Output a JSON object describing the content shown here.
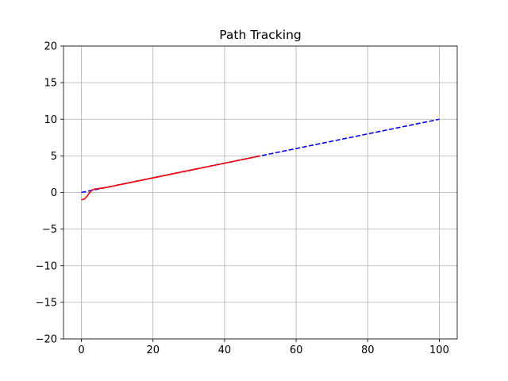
{
  "chart_data": {
    "type": "line",
    "title": "Path Tracking",
    "xlabel": "",
    "ylabel": "",
    "xlim": [
      -5,
      105
    ],
    "ylim": [
      -20,
      20
    ],
    "x_ticks": [
      0,
      20,
      40,
      60,
      80,
      100
    ],
    "y_ticks": [
      -20,
      -15,
      -10,
      -5,
      0,
      5,
      10,
      15,
      20
    ],
    "x_tick_labels": [
      "0",
      "20",
      "40",
      "60",
      "80",
      "100"
    ],
    "y_tick_labels": [
      "−20",
      "−15",
      "−10",
      "−5",
      "0",
      "5",
      "10",
      "15",
      "20"
    ],
    "grid": true,
    "legend": "none",
    "series": [
      {
        "style": "dashed",
        "color": "#0000ff",
        "x": [
          0,
          100
        ],
        "y": [
          0,
          10
        ]
      },
      {
        "style": "solid",
        "color": "#ff0000",
        "x": [
          0,
          0.8,
          1.6,
          2.3,
          3,
          4,
          5,
          7,
          10,
          15,
          20,
          30,
          40,
          50
        ],
        "y": [
          -1,
          -0.9,
          -0.5,
          0,
          0.35,
          0.5,
          0.55,
          0.7,
          1.0,
          1.5,
          2.0,
          3.0,
          4.0,
          5.0
        ]
      }
    ]
  }
}
